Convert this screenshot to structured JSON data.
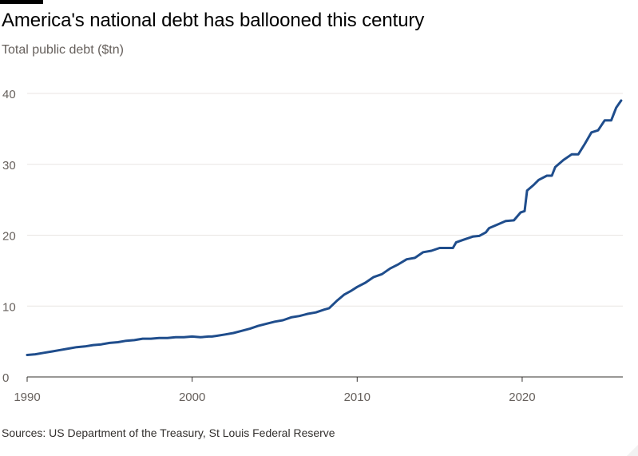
{
  "header": {
    "title": "America's national debt has ballooned this century",
    "subtitle": "Total public debt ($tn)"
  },
  "footer": {
    "source": "Sources: US Department of the Treasury, St Louis Federal Reserve"
  },
  "colors": {
    "line": "#1f4d8c",
    "grid": "#e9e6e3",
    "axis": "#33302e",
    "tick_label": "#66605c"
  },
  "chart_data": {
    "type": "line",
    "title": "America's national debt has ballooned this century",
    "subtitle": "Total public debt ($tn)",
    "xlabel": "",
    "ylabel": "",
    "xlim": [
      1990,
      2026.1
    ],
    "ylim": [
      0,
      40
    ],
    "x_ticks": [
      1990,
      2000,
      2010,
      2020
    ],
    "x_tick_labels": [
      "1990",
      "2000",
      "2010",
      "2020"
    ],
    "y_ticks": [
      0,
      10,
      20,
      30,
      40
    ],
    "y_tick_labels": [
      "0",
      "10",
      "20",
      "30",
      "40"
    ],
    "grid": "horizontal",
    "legend": "none",
    "series": [
      {
        "x": [
          1990.0,
          1990.5,
          1991.0,
          1991.5,
          1992.0,
          1992.5,
          1993.0,
          1993.5,
          1994.0,
          1994.5,
          1995.0,
          1995.5,
          1996.0,
          1996.5,
          1997.0,
          1997.5,
          1998.0,
          1998.5,
          1999.0,
          1999.5,
          2000.0,
          2000.5,
          2001.0,
          2001.2,
          2001.5,
          2002.0,
          2002.5,
          2003.0,
          2003.5,
          2004.0,
          2004.5,
          2005.0,
          2005.5,
          2006.0,
          2006.5,
          2007.0,
          2007.5,
          2008.0,
          2008.3,
          2008.8,
          2009.2,
          2009.6,
          2010.0,
          2010.5,
          2011.0,
          2011.5,
          2012.0,
          2012.5,
          2013.0,
          2013.5,
          2014.0,
          2014.5,
          2015.0,
          2015.3,
          2015.8,
          2016.0,
          2016.5,
          2017.0,
          2017.4,
          2017.8,
          2018.0,
          2018.5,
          2019.0,
          2019.5,
          2019.9,
          2020.15,
          2020.3,
          2020.7,
          2021.0,
          2021.5,
          2021.8,
          2022.0,
          2022.5,
          2023.0,
          2023.4,
          2023.8,
          2024.2,
          2024.6,
          2025.0,
          2025.4,
          2025.7,
          2026.0
        ],
        "y": [
          3.1,
          3.2,
          3.4,
          3.6,
          3.8,
          4.0,
          4.2,
          4.3,
          4.5,
          4.6,
          4.8,
          4.9,
          5.1,
          5.2,
          5.4,
          5.4,
          5.5,
          5.5,
          5.6,
          5.6,
          5.7,
          5.6,
          5.7,
          5.7,
          5.8,
          6.0,
          6.2,
          6.5,
          6.8,
          7.2,
          7.5,
          7.8,
          8.0,
          8.4,
          8.6,
          8.9,
          9.1,
          9.5,
          9.7,
          10.8,
          11.6,
          12.1,
          12.7,
          13.3,
          14.1,
          14.5,
          15.3,
          15.9,
          16.6,
          16.8,
          17.6,
          17.8,
          18.2,
          18.2,
          18.2,
          19.0,
          19.4,
          19.8,
          19.9,
          20.4,
          21.0,
          21.5,
          22.0,
          22.1,
          23.2,
          23.4,
          26.3,
          27.1,
          27.8,
          28.4,
          28.4,
          29.6,
          30.6,
          31.4,
          31.4,
          32.9,
          34.5,
          34.8,
          36.2,
          36.2,
          38.0,
          39.0
        ]
      }
    ]
  }
}
